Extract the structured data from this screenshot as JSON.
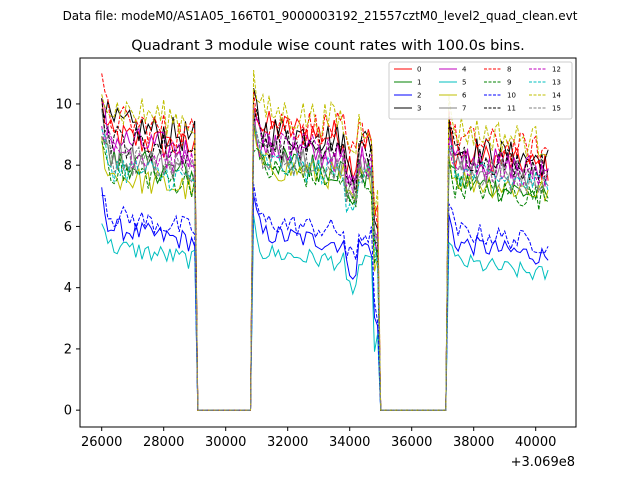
{
  "chart_data": {
    "type": "line",
    "suptitle": "Data file: modeM0/AS1A05_166T01_9000003192_21557cztM0_level2_quad_clean.evt",
    "title": "Quadrant 3 module wise count rates with 100.0s bins.",
    "x_offset_label": "+3.069e8",
    "xlim": [
      25300,
      41300
    ],
    "ylim": [
      -0.55,
      11.5
    ],
    "x_ticks": [
      26000,
      28000,
      30000,
      32000,
      34000,
      36000,
      38000,
      40000
    ],
    "x_tick_labels": [
      "26000",
      "28000",
      "30000",
      "32000",
      "34000",
      "36000",
      "38000",
      "40000"
    ],
    "y_ticks": [
      0,
      2,
      4,
      6,
      8,
      10
    ],
    "y_tick_labels": [
      "0",
      "2",
      "4",
      "6",
      "8",
      "10"
    ],
    "xlabel": "",
    "ylabel": "",
    "legend_position": "top-right",
    "segments": [
      {
        "start": 26000,
        "end": 29000
      },
      {
        "start": 30900,
        "end": 34900
      },
      {
        "start": 37150,
        "end": 40450
      }
    ],
    "gap_value": 0,
    "series": [
      {
        "name": "0",
        "color": "#ff0000",
        "dash": "solid",
        "seg_means": [
          9.0,
          9.3,
          8.4
        ]
      },
      {
        "name": "1",
        "color": "#008000",
        "dash": "solid",
        "seg_means": [
          8.2,
          8.2,
          7.5
        ]
      },
      {
        "name": "2",
        "color": "#0000ff",
        "dash": "solid",
        "seg_means": [
          6.0,
          5.8,
          5.5
        ]
      },
      {
        "name": "3",
        "color": "#000000",
        "dash": "solid",
        "seg_means": [
          9.4,
          9.2,
          8.6
        ]
      },
      {
        "name": "4",
        "color": "#bf00bf",
        "dash": "solid",
        "seg_means": [
          8.9,
          8.6,
          8.3
        ]
      },
      {
        "name": "5",
        "color": "#00bfbf",
        "dash": "solid",
        "seg_means": [
          5.4,
          5.2,
          4.9
        ]
      },
      {
        "name": "6",
        "color": "#bfbf00",
        "dash": "solid",
        "seg_means": [
          7.7,
          8.0,
          7.6
        ]
      },
      {
        "name": "7",
        "color": "#808080",
        "dash": "solid",
        "seg_means": [
          8.4,
          8.5,
          8.0
        ]
      },
      {
        "name": "8",
        "color": "#ff0000",
        "dash": "dashed",
        "seg_means": [
          9.5,
          9.5,
          8.9
        ]
      },
      {
        "name": "9",
        "color": "#008000",
        "dash": "dashed",
        "seg_means": [
          7.9,
          7.9,
          7.4
        ]
      },
      {
        "name": "10",
        "color": "#0000ff",
        "dash": "dashed",
        "seg_means": [
          6.4,
          6.2,
          5.9
        ]
      },
      {
        "name": "11",
        "color": "#000000",
        "dash": "dashed",
        "seg_means": [
          8.9,
          8.8,
          8.4
        ]
      },
      {
        "name": "12",
        "color": "#bf00bf",
        "dash": "dashed",
        "seg_means": [
          8.6,
          8.7,
          8.1
        ]
      },
      {
        "name": "13",
        "color": "#00bfbf",
        "dash": "dashed",
        "seg_means": [
          8.0,
          8.1,
          7.8
        ]
      },
      {
        "name": "14",
        "color": "#bfbf00",
        "dash": "dashed",
        "seg_means": [
          9.9,
          9.8,
          9.2
        ]
      },
      {
        "name": "15",
        "color": "#808080",
        "dash": "dashed",
        "seg_means": [
          8.3,
          8.3,
          7.9
        ]
      }
    ]
  }
}
